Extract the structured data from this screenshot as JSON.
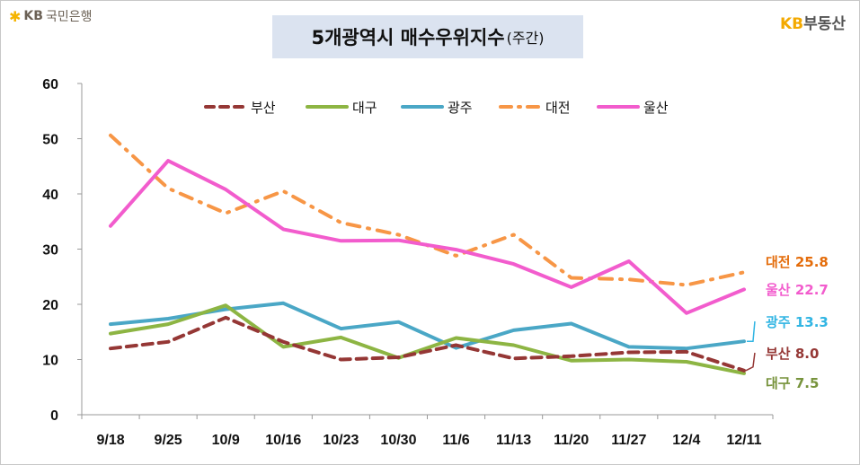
{
  "header": {
    "brand_left": "KB국민은행",
    "brand_left_kb": "KB",
    "brand_left_rest": "국민은행",
    "brand_right_kb": "KB",
    "brand_right_rest": "부동산"
  },
  "chart_data": {
    "type": "line",
    "title": "5개광역시 매수우위지수",
    "subtitle": "(주간)",
    "categories": [
      "9/18",
      "9/25",
      "10/9",
      "10/16",
      "10/23",
      "10/30",
      "11/6",
      "11/13",
      "11/20",
      "11/27",
      "12/4",
      "12/11"
    ],
    "ylim": [
      0,
      60
    ],
    "yticks": [
      0,
      10,
      20,
      30,
      40,
      50,
      60
    ],
    "grid": false,
    "legend_position": "top",
    "series": [
      {
        "name": "부산",
        "color": "#953735",
        "style": "dashed",
        "values": [
          12.0,
          13.2,
          17.6,
          13.2,
          10.0,
          10.4,
          12.6,
          10.2,
          10.6,
          11.3,
          11.4,
          8.0
        ],
        "end_label": "8.0"
      },
      {
        "name": "대구",
        "color": "#8db543",
        "style": "solid",
        "values": [
          14.7,
          16.4,
          19.8,
          12.3,
          14.0,
          10.3,
          13.9,
          12.6,
          9.8,
          10.0,
          9.6,
          7.5
        ],
        "end_label": "7.5"
      },
      {
        "name": "광주",
        "color": "#4aa7c6",
        "style": "solid",
        "values": [
          16.4,
          17.4,
          19.1,
          20.2,
          15.6,
          16.8,
          12.1,
          15.3,
          16.5,
          12.3,
          12.0,
          13.3
        ],
        "end_label": "13.3"
      },
      {
        "name": "대전",
        "color": "#f79646",
        "style": "dashdot",
        "values": [
          50.6,
          41.0,
          36.5,
          40.5,
          34.8,
          32.6,
          28.8,
          32.6,
          24.8,
          24.5,
          23.5,
          25.8
        ],
        "end_label": "25.8"
      },
      {
        "name": "울산",
        "color": "#f25ccd",
        "style": "solid",
        "values": [
          34.2,
          46.0,
          40.8,
          33.6,
          31.5,
          31.6,
          29.9,
          27.3,
          23.1,
          27.8,
          18.4,
          22.7
        ],
        "end_label": "22.7"
      }
    ],
    "end_labels_color": {
      "부산": "#953735",
      "대구": "#77933c",
      "광주": "#31b5e3",
      "대전": "#e46c0a",
      "울산": "#f25ccd"
    }
  }
}
